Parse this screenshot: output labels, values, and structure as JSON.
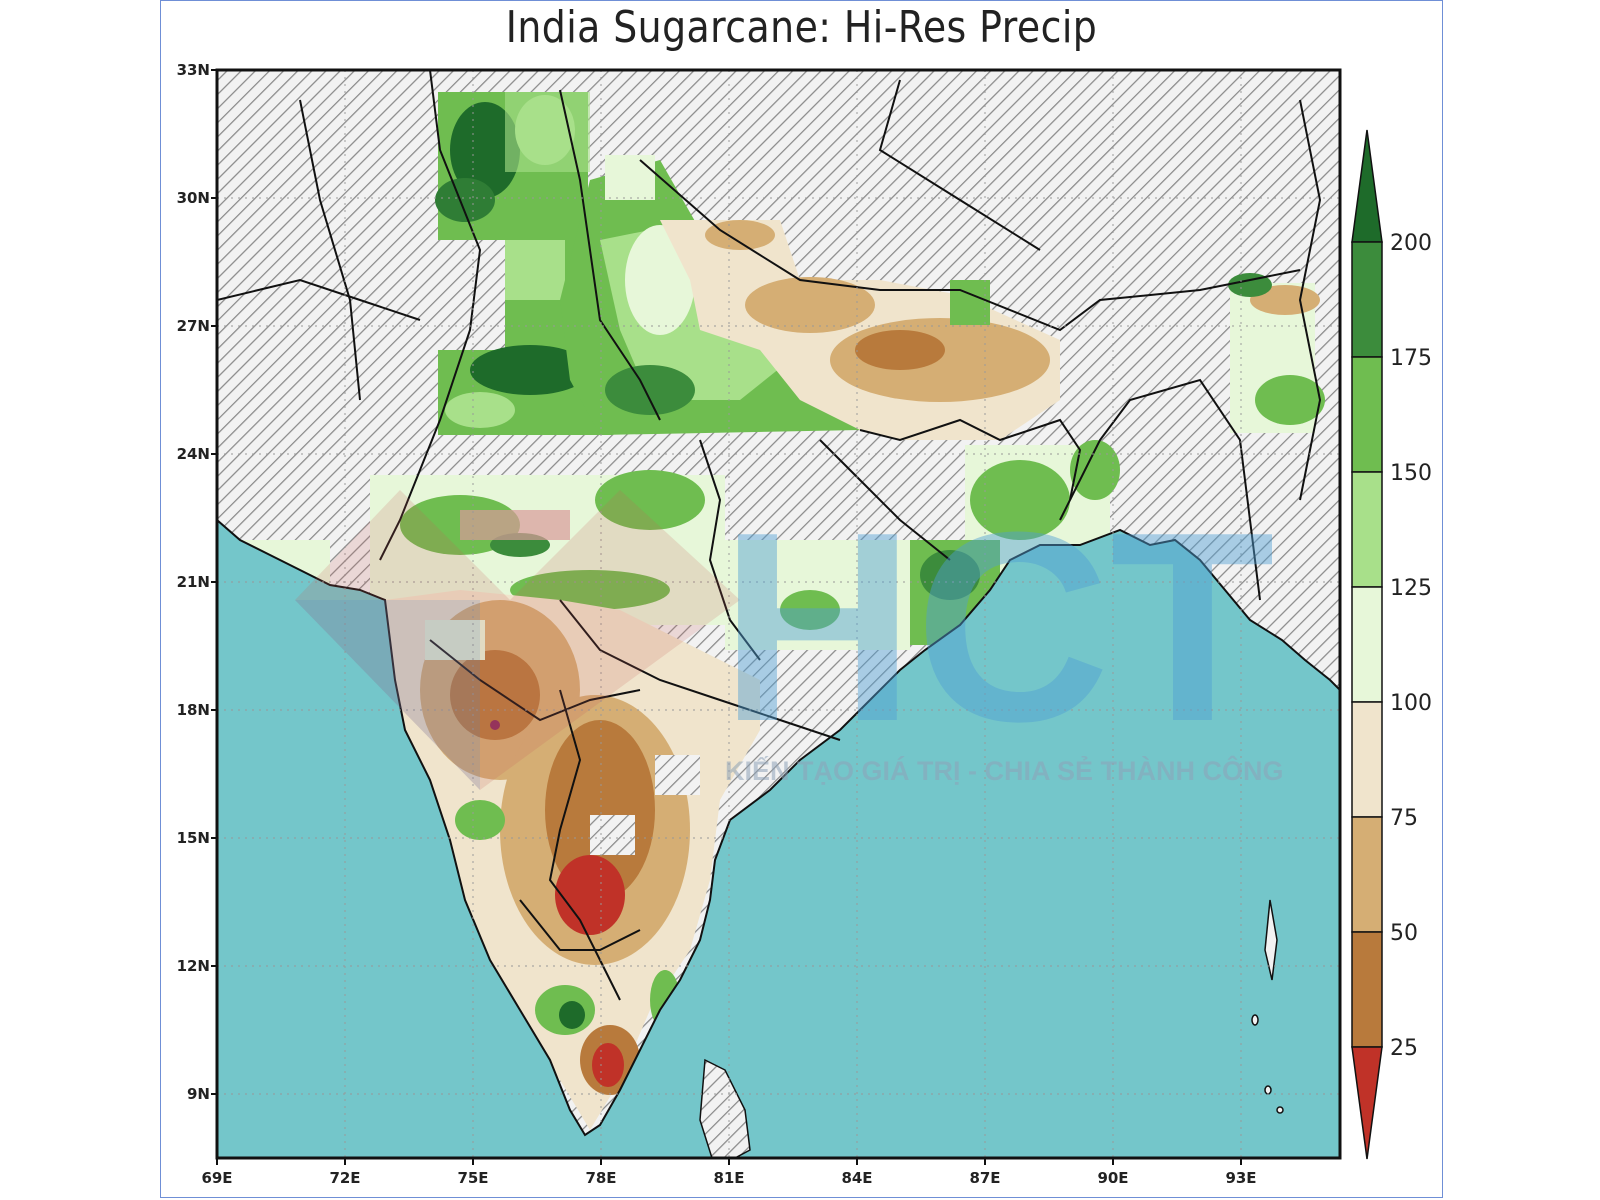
{
  "map": {
    "title": "India Sugarcane: Hi-Res Precip",
    "lat_labels": [
      "33N",
      "30N",
      "27N",
      "24N",
      "21N",
      "18N",
      "15N",
      "12N",
      "9N"
    ],
    "lon_labels": [
      "69E",
      "72E",
      "75E",
      "78E",
      "81E",
      "84E",
      "87E",
      "90E",
      "93E"
    ],
    "colorbar": {
      "labels": [
        "200",
        "175",
        "150",
        "125",
        "100",
        "75",
        "50",
        "25"
      ],
      "colors": [
        "#1e6b2a",
        "#3c8c3c",
        "#6fbd50",
        "#a8e08a",
        "#e7f7d9",
        "#f0e4cc",
        "#d5ae74",
        "#b87a3c",
        "#c03228"
      ]
    },
    "watermark": {
      "brand": "HCT",
      "tagline": "KIẾN TẠO GIÁ TRỊ - CHIA SẺ THÀNH CÔNG"
    },
    "colors": {
      "ocean": "#74c6ca",
      "hatch": "#7a7a7a",
      "frame": "#6f8fd6"
    }
  }
}
